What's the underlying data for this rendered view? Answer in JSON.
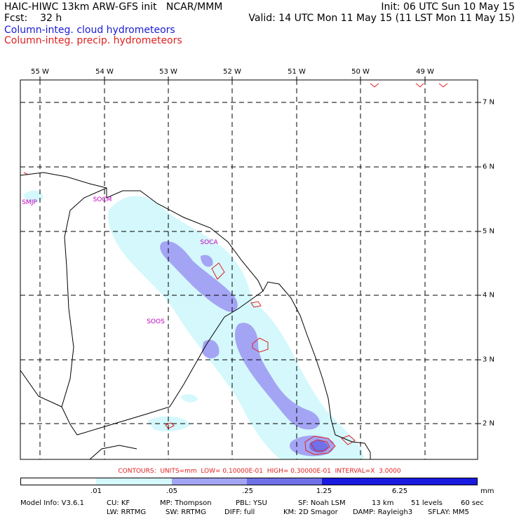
{
  "header": {
    "title": "HAIC-HIWC 13km ARW-GFS init",
    "agency": "NCAR/MMM",
    "init": "Init: 06 UTC Sun 10 May 15",
    "forecast_label": "Fcst:",
    "forecast_value": "32 h",
    "valid": "Valid: 14 UTC Mon 11 May 15 (11 LST Mon 11 May 15)"
  },
  "legend": {
    "cloud": {
      "label": "Column-integ. cloud hydrometeors",
      "color": "#1a1ad6"
    },
    "precip": {
      "label": "Column-integ. precip. hydrometeors",
      "color": "#e02020"
    }
  },
  "map": {
    "longitude_labels": [
      "55 W",
      "54 W",
      "53 W",
      "52 W",
      "51 W",
      "50 W",
      "49 W"
    ],
    "latitude_labels": [
      "7 N",
      "6 N",
      "5 N",
      "4 N",
      "3 N",
      "2 N"
    ],
    "stations": [
      "SMJP",
      "SOCM",
      "SOCA",
      "SOOS"
    ],
    "colors": {
      "land_outline": "#000000",
      "grid": "#000000",
      "cloud_light": "#d4f8fc",
      "cloud_medium": "#a4a4f4",
      "cloud_heavy": "#7070e8",
      "precip_contour": "#e02020"
    }
  },
  "contours_text": "CONTOURS:  UNITS=mm  LOW= 0.10000E-01  HIGH= 0.30000E-01  INTERVAL=X  3.0000",
  "colorbar": {
    "colors": [
      "#ffffff",
      "#d4f8fc",
      "#a4a4f4",
      "#7070e8",
      "#1a1ae0"
    ],
    "ticks": [
      ".01",
      ".05",
      ".25",
      "1.25",
      "6.25"
    ],
    "unit": "mm"
  },
  "footer": {
    "model_info": "Model Info: V3.6.1",
    "cu": "CU: KF",
    "mp": "MP: Thompson",
    "pbl": "PBL: YSU",
    "sf": "SF: Noah LSM",
    "resolution": "13 km",
    "levels": "51 levels",
    "timestep": "60 sec",
    "lw": "LW: RRTMG",
    "sw": "SW: RRTMG",
    "diff": "DIFF: full",
    "km": "KM: 2D Smagor",
    "damp": "DAMP: Rayleigh3",
    "sflay": "SFLAY: MM5"
  }
}
